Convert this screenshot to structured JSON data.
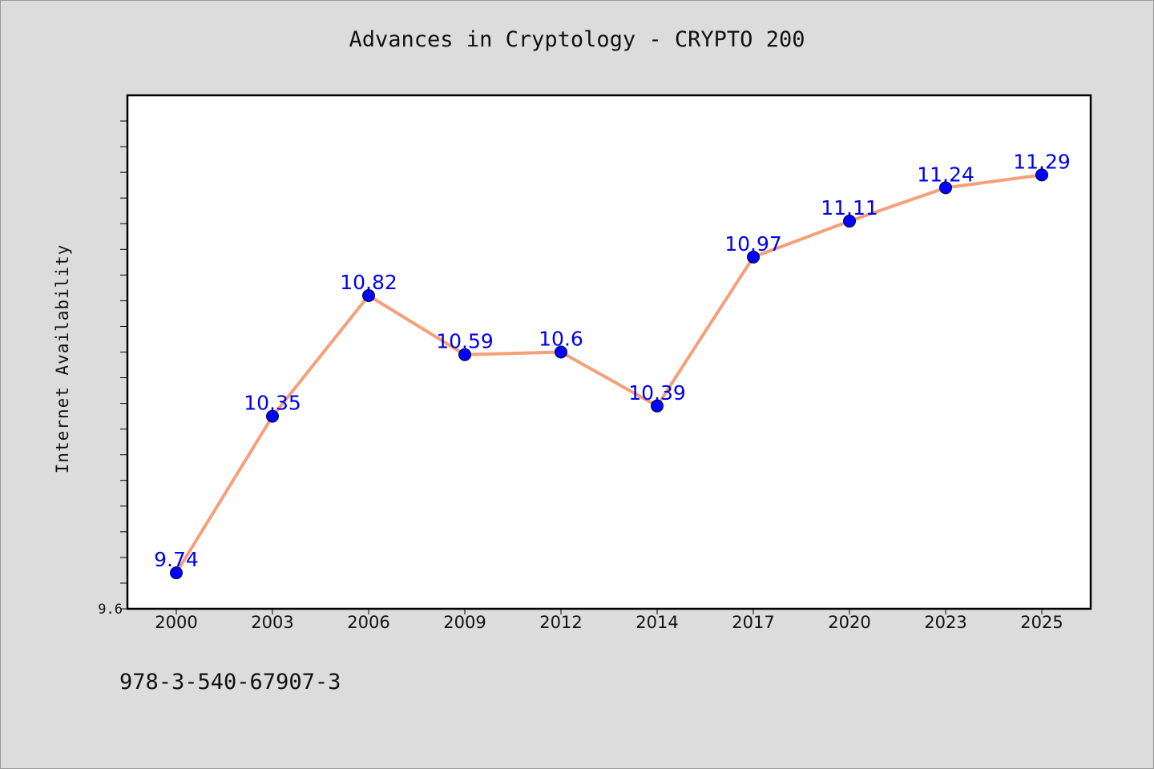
{
  "chart_data": {
    "type": "line",
    "title": "Advances in Cryptology - CRYPTO 200",
    "xlabel": "",
    "ylabel": "Internet Availability",
    "categories": [
      "2000",
      "2003",
      "2006",
      "2009",
      "2012",
      "2014",
      "2017",
      "2020",
      "2023",
      "2025"
    ],
    "series": [
      {
        "values": [
          9.74,
          10.35,
          10.82,
          10.59,
          10.6,
          10.39,
          10.97,
          11.11,
          11.24,
          11.29
        ],
        "data_labels": [
          "9.74",
          "10.35",
          "10.82",
          "10.59",
          "10.6",
          "10.39",
          "10.97",
          "11.11",
          "11.24",
          "11.29"
        ]
      }
    ],
    "ylim": [
      9.6,
      11.6
    ],
    "ytick_labels": [
      "9.6"
    ],
    "grid": false,
    "colors": {
      "line": "#f4a07a",
      "marker": "#0000ff",
      "data_label": "#0000ee",
      "plot_background": "#ffffff",
      "figure_background": "#dcdcdc"
    }
  },
  "footnote": "978-3-540-67907-3"
}
